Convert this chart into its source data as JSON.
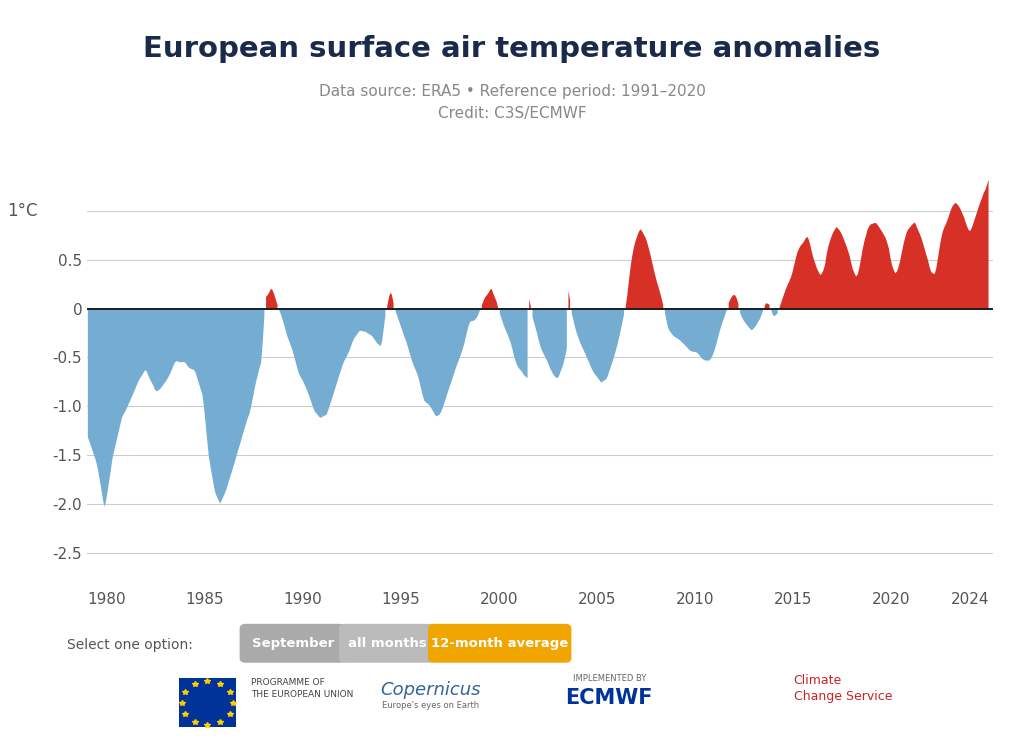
{
  "title": "European surface air temperature anomalies",
  "subtitle1": "Data source: ERA5 • Reference period: 1991–2020",
  "subtitle2": "Credit: C3S/ECMWF",
  "ylabel": "1°C",
  "xlim": [
    1979.0,
    2025.2
  ],
  "ylim": [
    -2.85,
    1.55
  ],
  "yticks": [
    1.0,
    0.5,
    0.0,
    -0.5,
    -1.0,
    -1.5,
    -2.0,
    -2.5
  ],
  "xticks": [
    1980,
    1985,
    1990,
    1995,
    2000,
    2005,
    2010,
    2015,
    2020,
    2024
  ],
  "color_positive": "#d73027",
  "color_negative": "#74add1",
  "background": "#ffffff",
  "title_color": "#1a2a4a",
  "subtitle_color": "#888888",
  "axis_color": "#555555",
  "grid_color": "#cccccc",
  "zero_line_color": "#111111",
  "select_label": "Select one option:",
  "btn_september_color": "#aaaaaa",
  "btn_all_months_color": "#bbbbbb",
  "btn_12month_color": "#f0a500",
  "btn_september_text": "September",
  "btn_all_months_text": "all months",
  "btn_12month_text": "12-month average"
}
